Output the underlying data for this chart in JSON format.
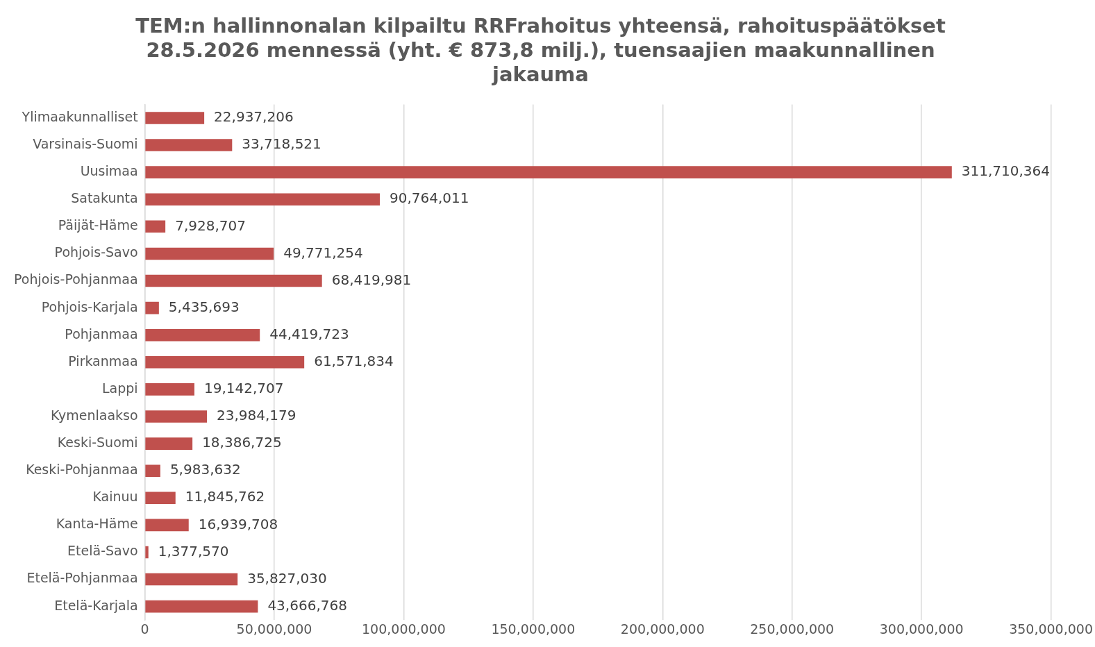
{
  "chart_data": {
    "type": "bar",
    "orientation": "horizontal",
    "title": "TEM:n hallinnonalan kilpailtu RRFrahoitus yhteensä, rahoituspäätökset 28.5.2026 mennessä (yht. € 873,8 milj.), tuensaajien maakunnallinen jakauma",
    "categories": [
      "Ylimaakunnalliset",
      "Varsinais-Suomi",
      "Uusimaa",
      "Satakunta",
      "Päijät-Häme",
      "Pohjois-Savo",
      "Pohjois-Pohjanmaa",
      "Pohjois-Karjala",
      "Pohjanmaa",
      "Pirkanmaa",
      "Lappi",
      "Kymenlaakso",
      "Keski-Suomi",
      "Keski-Pohjanmaa",
      "Kainuu",
      "Kanta-Häme",
      "Etelä-Savo",
      "Etelä-Pohjanmaa",
      "Etelä-Karjala"
    ],
    "values": [
      22937206,
      33718521,
      311710364,
      90764011,
      7928707,
      49771254,
      68419981,
      5435693,
      44419723,
      61571834,
      19142707,
      23984179,
      18386725,
      5983632,
      11845762,
      16939708,
      1377570,
      35827030,
      43666768
    ],
    "value_labels": [
      "22,937,206",
      "33,718,521",
      "311,710,364",
      "90,764,011",
      "7,928,707",
      "49,771,254",
      "68,419,981",
      "5,435,693",
      "44,419,723",
      "61,571,834",
      "19,142,707",
      "23,984,179",
      "18,386,725",
      "5,983,632",
      "11,845,762",
      "16,939,708",
      "1,377,570",
      "35,827,030",
      "43,666,768"
    ],
    "color": "#c0504d",
    "xlim": [
      0,
      350000000
    ],
    "xticks": [
      0,
      {
        "value": 50000000,
        "label": "50,000,000"
      },
      {
        "value": 100000000,
        "label": "100,000,000"
      },
      {
        "value": 150000000,
        "label": "150,000,000"
      },
      {
        "value": 200000000,
        "label": "200,000,000"
      },
      {
        "value": 250000000,
        "label": "250,000,000"
      },
      {
        "value": 300000000,
        "label": "300,000,000"
      },
      {
        "value": 350000000,
        "label": "350,000,000"
      }
    ],
    "grid": "x",
    "legend": false
  }
}
